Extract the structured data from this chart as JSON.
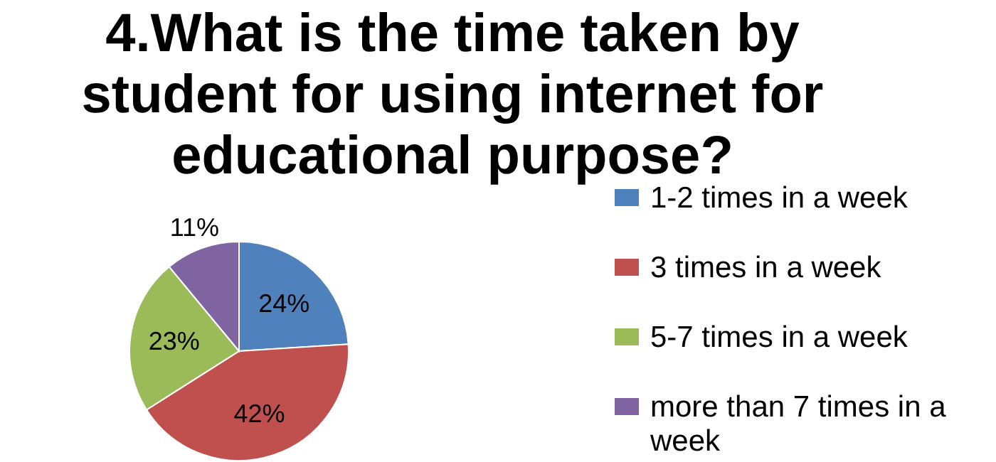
{
  "chart_data": {
    "type": "pie",
    "title": "4.What is the time taken by student for using internet for educational purpose?",
    "categories": [
      "1-2 times in a week",
      "3 times in a week",
      "5-7 times in a week",
      "more than 7 times in a week"
    ],
    "values": [
      24,
      42,
      23,
      11
    ],
    "colors": [
      "#4f81bd",
      "#c0504d",
      "#9bbb59",
      "#8064a2"
    ],
    "value_labels": [
      "24%",
      "42%",
      "23%",
      "11%"
    ],
    "legend": "right"
  }
}
